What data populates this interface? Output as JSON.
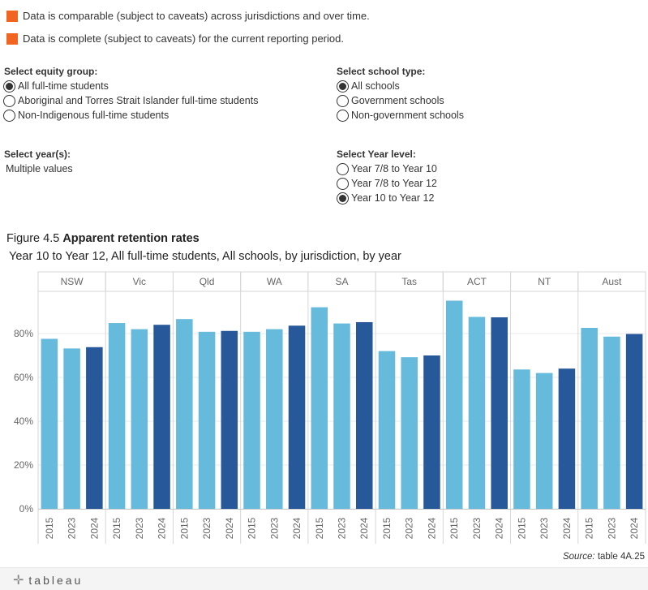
{
  "legend": {
    "items": [
      {
        "text": "Data is comparable (subject to caveats) across jurisdictions and over time.",
        "color": "#f26422"
      },
      {
        "text": "Data is complete (subject to caveats) for the current reporting period.",
        "color": "#f26422"
      }
    ]
  },
  "filters": {
    "equity": {
      "title": "Select equity group:",
      "options": [
        "All full-time students",
        "Aboriginal and Torres Strait Islander full-time students",
        "Non-Indigenous full-time students"
      ],
      "selected": 0
    },
    "school_type": {
      "title": "Select school type:",
      "options": [
        "All schools",
        "Government schools",
        "Non-government schools"
      ],
      "selected": 0
    },
    "year": {
      "title": "Select year(s):",
      "value": "Multiple values"
    },
    "year_level": {
      "title": "Select Year level:",
      "options": [
        "Year 7/8 to Year 10",
        "Year 7/8 to Year 12",
        "Year 10 to Year 12"
      ],
      "selected": 2
    }
  },
  "figure": {
    "label": "Figure 4.5",
    "title": "Apparent retention rates",
    "subtitle": "Year 10 to Year 12, All full-time students, All schools, by jurisdiction, by year"
  },
  "chart_data": {
    "type": "bar",
    "panels": [
      "NSW",
      "Vic",
      "Qld",
      "WA",
      "SA",
      "Tas",
      "ACT",
      "NT",
      "Aust"
    ],
    "years": [
      "2015",
      "2023",
      "2024"
    ],
    "series": [
      {
        "year": "2015",
        "color": "#66bbdd",
        "values": [
          77.6,
          84.8,
          86.6,
          80.8,
          92.0,
          72.0,
          95.0,
          63.6,
          82.6
        ]
      },
      {
        "year": "2023",
        "color": "#66bbdd",
        "values": [
          73.2,
          82.0,
          80.8,
          82.0,
          84.6,
          69.2,
          87.6,
          62.0,
          78.6
        ]
      },
      {
        "year": "2024",
        "color": "#27589a",
        "values": [
          73.8,
          84.0,
          81.2,
          83.6,
          85.2,
          70.0,
          87.4,
          64.0,
          79.8
        ]
      }
    ],
    "ylim": [
      0,
      100
    ],
    "yticks": [
      "0%",
      "20%",
      "40%",
      "60%",
      "80%"
    ],
    "ytick_values": [
      0,
      20,
      40,
      60,
      80
    ]
  },
  "source": {
    "label": "Source:",
    "text": "table 4A.25"
  },
  "footer": {
    "logo_text": "tableau"
  }
}
